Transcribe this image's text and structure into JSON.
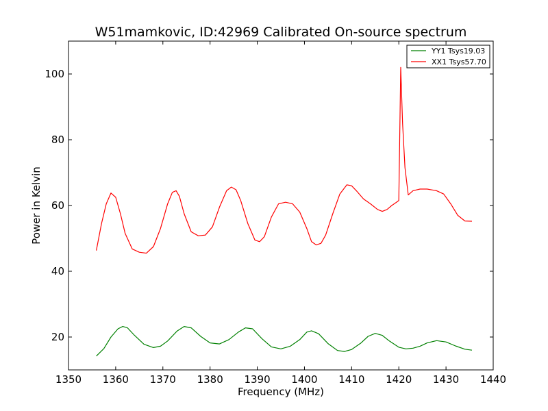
{
  "chart_data": {
    "type": "line",
    "title": "W51mamkovic, ID:42969 Calibrated On-source spectrum",
    "xlabel": "Frequency (MHz)",
    "ylabel": "Power in Kelvin",
    "xlim": [
      1350,
      1440
    ],
    "ylim": [
      10,
      110
    ],
    "xticks": [
      1350,
      1360,
      1370,
      1380,
      1390,
      1400,
      1410,
      1420,
      1430,
      1440
    ],
    "yticks": [
      20,
      40,
      60,
      80,
      100
    ],
    "legend_position": "top-right",
    "series": [
      {
        "name": "YY1 Tsys19.03",
        "color": "#008000",
        "x": [
          1355.9,
          1357.5,
          1359.0,
          1360.5,
          1361.5,
          1362.5,
          1364.0,
          1366.0,
          1368.0,
          1369.5,
          1371.0,
          1373.0,
          1374.5,
          1376.0,
          1378.0,
          1380.0,
          1382.0,
          1384.0,
          1386.0,
          1387.5,
          1389.0,
          1391.0,
          1393.0,
          1395.0,
          1397.0,
          1399.0,
          1400.5,
          1401.5,
          1403.0,
          1405.0,
          1407.0,
          1408.5,
          1410.0,
          1412.0,
          1413.5,
          1415.0,
          1416.5,
          1418.0,
          1420.0,
          1421.5,
          1423.0,
          1424.5,
          1426.0,
          1428.0,
          1430.0,
          1432.0,
          1434.0,
          1435.5
        ],
        "values": [
          14.2,
          16.5,
          20.0,
          22.5,
          23.2,
          22.8,
          20.5,
          17.8,
          16.8,
          17.2,
          18.8,
          21.8,
          23.2,
          22.8,
          20.2,
          18.2,
          17.9,
          19.2,
          21.5,
          22.8,
          22.5,
          19.5,
          17.0,
          16.4,
          17.2,
          19.2,
          21.5,
          21.9,
          21.0,
          18.0,
          15.9,
          15.6,
          16.2,
          18.2,
          20.2,
          21.1,
          20.5,
          18.8,
          16.9,
          16.4,
          16.6,
          17.2,
          18.2,
          18.9,
          18.5,
          17.3,
          16.3,
          16.0
        ]
      },
      {
        "name": "XX1 Tsys57.70",
        "color": "#ff0000",
        "x": [
          1355.9,
          1357.0,
          1358.0,
          1359.0,
          1360.0,
          1361.0,
          1362.0,
          1363.5,
          1365.0,
          1366.5,
          1368.0,
          1369.5,
          1371.0,
          1372.0,
          1372.8,
          1373.5,
          1374.5,
          1376.0,
          1377.5,
          1379.0,
          1380.5,
          1382.0,
          1383.5,
          1384.5,
          1385.5,
          1386.5,
          1388.0,
          1389.5,
          1390.5,
          1391.5,
          1393.0,
          1394.5,
          1396.0,
          1397.5,
          1399.0,
          1400.5,
          1401.5,
          1402.5,
          1403.5,
          1404.5,
          1406.0,
          1407.5,
          1409.0,
          1410.0,
          1411.0,
          1412.5,
          1414.0,
          1415.5,
          1416.5,
          1417.5,
          1418.5,
          1419.5,
          1420.0,
          1420.4,
          1420.8,
          1421.3,
          1422.0,
          1423.0,
          1424.5,
          1426.0,
          1428.0,
          1429.5,
          1431.0,
          1432.5,
          1434.0,
          1435.5
        ],
        "values": [
          46.3,
          54.5,
          60.5,
          63.8,
          62.5,
          57.5,
          51.5,
          46.8,
          45.8,
          45.5,
          47.5,
          53.0,
          60.5,
          64.0,
          64.5,
          62.8,
          57.5,
          52.0,
          50.8,
          51.0,
          53.5,
          59.5,
          64.5,
          65.6,
          64.8,
          61.5,
          54.5,
          49.5,
          49.0,
          50.5,
          56.5,
          60.5,
          61.0,
          60.5,
          58.0,
          53.0,
          49.0,
          48.0,
          48.5,
          51.0,
          57.5,
          63.5,
          66.3,
          66.0,
          64.5,
          62.0,
          60.5,
          58.8,
          58.2,
          58.8,
          60.0,
          61.0,
          61.5,
          102.0,
          85.0,
          71.5,
          63.2,
          64.5,
          65.0,
          65.0,
          64.5,
          63.5,
          60.5,
          57.0,
          55.3,
          55.2
        ]
      }
    ]
  }
}
